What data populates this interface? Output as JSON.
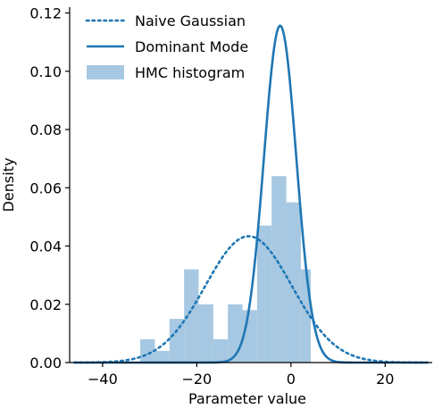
{
  "chart_data": {
    "type": "histogram+line",
    "xlabel": "Parameter value",
    "ylabel": "Density",
    "xlim": [
      -47,
      30
    ],
    "ylim": [
      0,
      0.122
    ],
    "xticks": [
      -40,
      -20,
      0,
      20
    ],
    "yticks": [
      0.0,
      0.02,
      0.04,
      0.06,
      0.08,
      0.1,
      0.12
    ],
    "ytick_labels": [
      "0.00",
      "0.02",
      "0.04",
      "0.06",
      "0.08",
      "0.10",
      "0.12"
    ],
    "grid": false,
    "legend_placement": "top-left",
    "colors": {
      "line": "#1f77b4",
      "bars": "#a6c8e2"
    },
    "series": [
      {
        "name": "Naive Gaussian",
        "kind": "line",
        "style": "dotted",
        "distribution": {
          "mean": -9,
          "std": 9.2
        }
      },
      {
        "name": "Dominant Mode",
        "kind": "line",
        "style": "solid",
        "distribution": {
          "mean": -2.3,
          "std": 3.45
        }
      },
      {
        "name": "HMC histogram",
        "kind": "bar",
        "bins": [
          {
            "x0": -32.0,
            "x1": -28.9,
            "value": 0.008
          },
          {
            "x0": -28.9,
            "x1": -25.8,
            "value": 0.004
          },
          {
            "x0": -25.8,
            "x1": -22.7,
            "value": 0.015
          },
          {
            "x0": -22.7,
            "x1": -19.6,
            "value": 0.032
          },
          {
            "x0": -19.6,
            "x1": -16.5,
            "value": 0.02
          },
          {
            "x0": -16.5,
            "x1": -13.4,
            "value": 0.008
          },
          {
            "x0": -13.4,
            "x1": -10.3,
            "value": 0.02
          },
          {
            "x0": -10.3,
            "x1": -7.2,
            "value": 0.018
          },
          {
            "x0": -7.2,
            "x1": -4.1,
            "value": 0.047
          },
          {
            "x0": -4.1,
            "x1": -1.0,
            "value": 0.064
          },
          {
            "x0": -1.0,
            "x1": 2.1,
            "value": 0.055
          },
          {
            "x0": 2.1,
            "x1": 4.2,
            "value": 0.032
          }
        ]
      }
    ]
  }
}
